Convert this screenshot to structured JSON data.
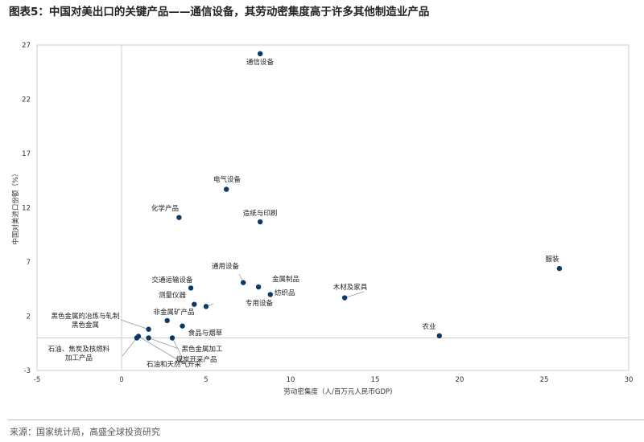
{
  "title": "图表5：中国对美出口的关键产品——通信设备，其劳动密集度高于许多其他制造业产品",
  "source": "来源：国家统计局，高盛全球投资研究",
  "chart_data": {
    "type": "scatter",
    "title": "图表5：中国对美出口的关键产品——通信设备，其劳动密集度高于许多其他制造业产品",
    "xlabel": "劳动密集度（人/百万元人民币GDP)",
    "ylabel": "中国对美进口份额（%）",
    "xlim": [
      -5,
      30
    ],
    "ylim": [
      -3,
      27
    ],
    "xticks": [
      "-5",
      "0",
      "5",
      "10",
      "15",
      "20",
      "25",
      "30"
    ],
    "yticks": [
      "-3",
      "2",
      "7",
      "12",
      "17",
      "22",
      "27"
    ],
    "grid": false,
    "reference_lines": {
      "x": 0,
      "y": 0
    },
    "marker_color": "#0b3a66",
    "points": [
      {
        "label": "通信设备",
        "x": 8.2,
        "y": 26.2
      },
      {
        "label": "电气设备",
        "x": 6.2,
        "y": 13.7
      },
      {
        "label": "化学产品",
        "x": 3.4,
        "y": 11.1
      },
      {
        "label": "造纸与印刷",
        "x": 8.2,
        "y": 10.7
      },
      {
        "label": "服装",
        "x": 25.9,
        "y": 6.4
      },
      {
        "label": "通用设备",
        "x": 7.2,
        "y": 5.1
      },
      {
        "label": "金属制品",
        "x": 8.1,
        "y": 4.7
      },
      {
        "label": "纺织品",
        "x": 8.8,
        "y": 4.0
      },
      {
        "label": "木材及家具",
        "x": 13.2,
        "y": 3.7
      },
      {
        "label": "交通运输设备",
        "x": 4.1,
        "y": 4.6
      },
      {
        "label": "测量仪器",
        "x": 4.3,
        "y": 3.1
      },
      {
        "label": "专用设备",
        "x": 5.0,
        "y": 2.9
      },
      {
        "label": "非金属矿产品",
        "x": 2.7,
        "y": 1.6
      },
      {
        "label": "食品与烟草",
        "x": 3.6,
        "y": 1.1
      },
      {
        "label": "黑色金属的冶炼与轧制|黑色金属",
        "x": 1.6,
        "y": 0.8
      },
      {
        "label": "石油、焦炭及核燃料|加工产品",
        "x": 0.9,
        "y": 0.0
      },
      {
        "label": "石油和天然气开采",
        "x": 1.0,
        "y": 0.15
      },
      {
        "label": "黑色金属加工",
        "x": 1.6,
        "y": 0.0
      },
      {
        "label": "煤炭开采产品",
        "x": 3.0,
        "y": 0.0
      },
      {
        "label": "农业",
        "x": 18.8,
        "y": 0.2
      }
    ]
  }
}
